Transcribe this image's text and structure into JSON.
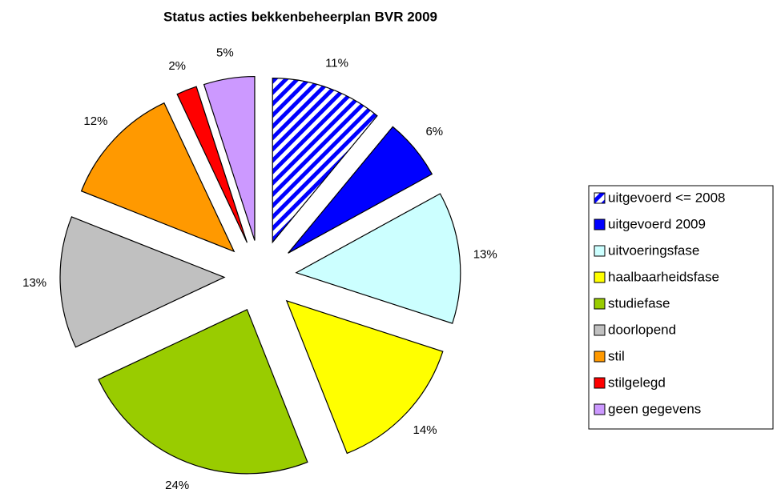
{
  "chart_data": {
    "type": "pie",
    "title": "Status acties bekkenbeheerplan BVR 2009",
    "categories": [
      "uitgevoerd <= 2008",
      "uitgevoerd 2009",
      "uitvoeringsfase",
      "haalbaarheidsfase",
      "studiefase",
      "doorlopend",
      "stil",
      "stilgelegd",
      "geen gegevens"
    ],
    "values": [
      11,
      6,
      13,
      14,
      24,
      13,
      12,
      2,
      5
    ],
    "value_labels": [
      "11%",
      "6%",
      "13%",
      "14%",
      "24%",
      "13%",
      "12%",
      "2%",
      "5%"
    ],
    "colors": [
      "#0000ff",
      "#0000ff",
      "#ccffff",
      "#ffff00",
      "#99cc00",
      "#c0c0c0",
      "#ff9900",
      "#ff0000",
      "#cc99ff"
    ],
    "hatch": [
      true,
      false,
      false,
      false,
      false,
      false,
      false,
      false,
      false
    ],
    "exploded": true,
    "legend": "right"
  }
}
